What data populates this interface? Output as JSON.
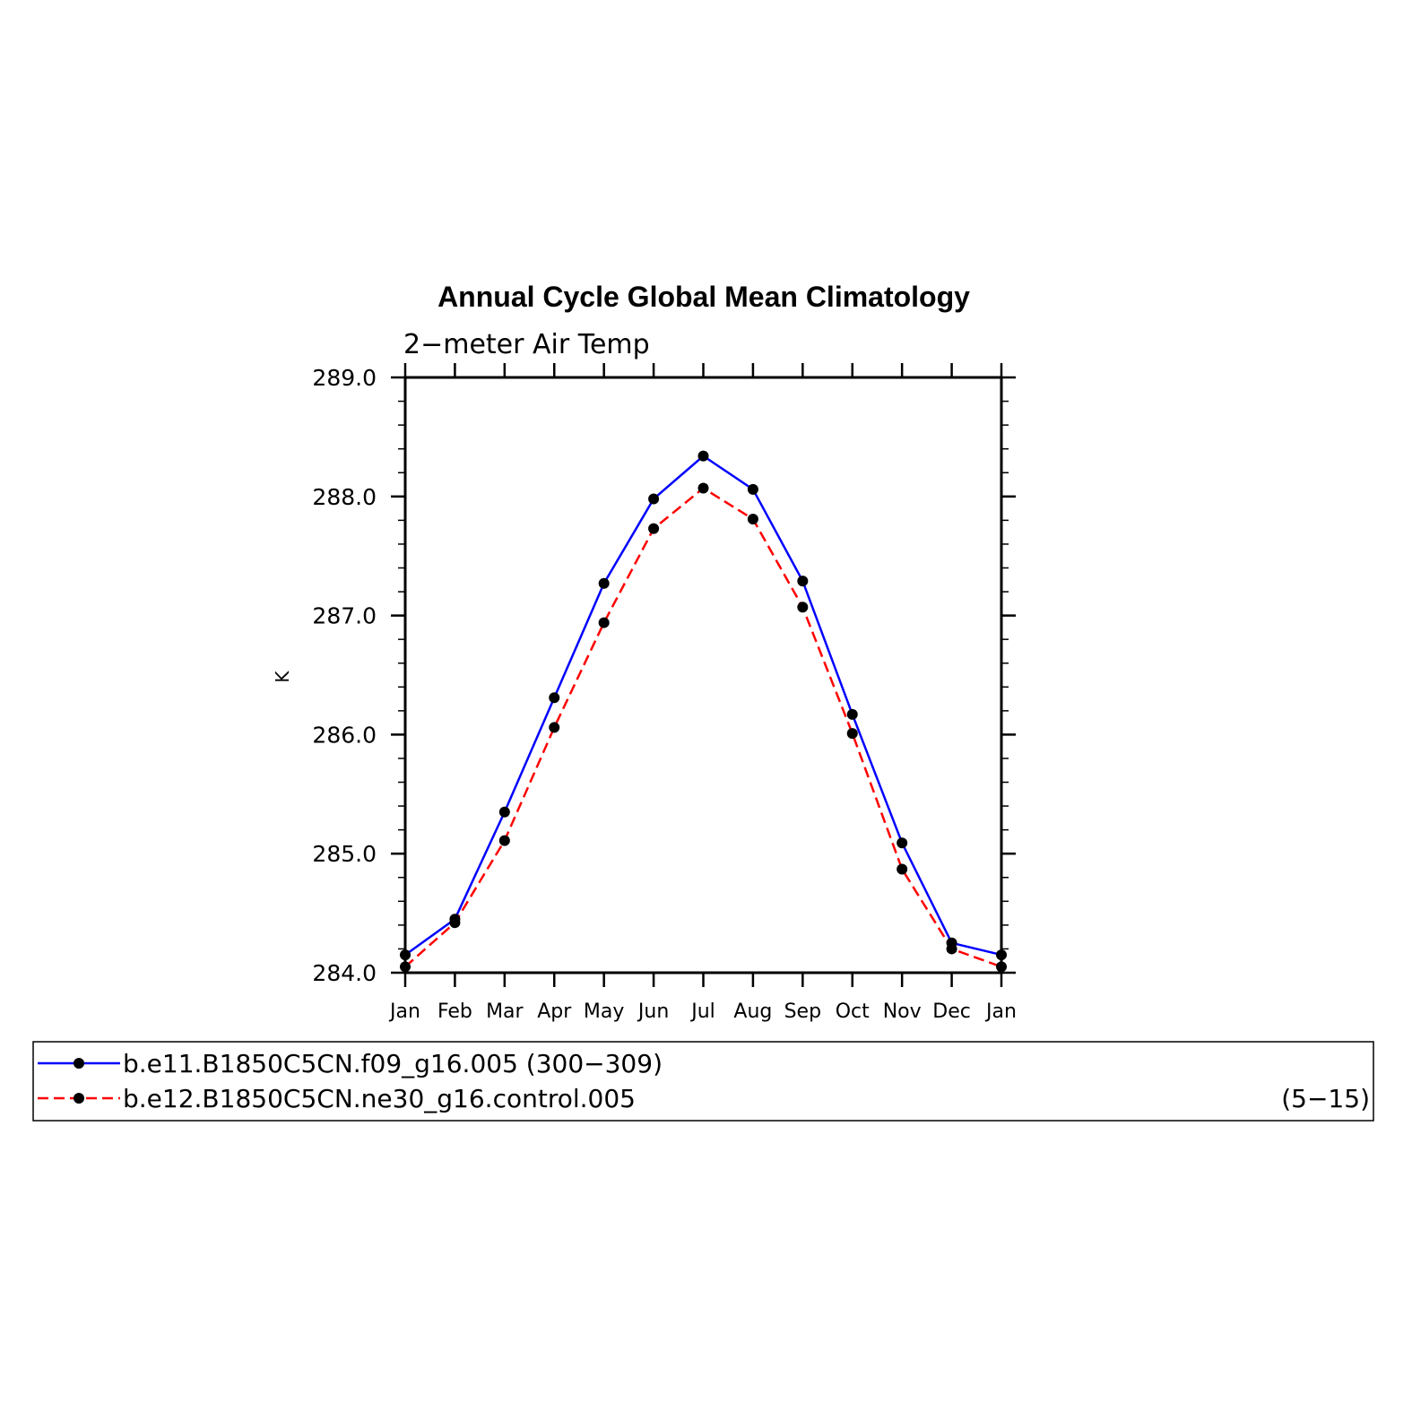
{
  "chart_data": {
    "type": "line",
    "title": "Annual Cycle Global Mean Climatology",
    "subtitle": "2−meter Air Temp",
    "ylabel": "K",
    "xlabel": "",
    "ylim": [
      284.0,
      289.0
    ],
    "yticks": [
      "289.0",
      "288.0",
      "287.0",
      "286.0",
      "285.0",
      "284.0"
    ],
    "categories": [
      "Jan",
      "Feb",
      "Mar",
      "Apr",
      "May",
      "Jun",
      "Jul",
      "Aug",
      "Sep",
      "Oct",
      "Nov",
      "Dec",
      "Jan"
    ],
    "grid": false,
    "legend_position": "bottom",
    "series": [
      {
        "name": "b.e11.B1850C5CN.f09_g16.005 (300−309)",
        "color": "#0000ff",
        "dash": "solid",
        "values": [
          284.15,
          284.45,
          285.35,
          286.31,
          287.27,
          287.98,
          288.34,
          288.06,
          287.29,
          286.17,
          285.09,
          284.25,
          284.15
        ]
      },
      {
        "name": "b.e12.B1850C5CN.ne30_g16.control.005",
        "name_suffix": "(5−15)",
        "color": "#ff0000",
        "dash": "dashed",
        "values": [
          284.05,
          284.42,
          285.11,
          286.06,
          286.94,
          287.73,
          288.07,
          287.81,
          287.07,
          286.01,
          284.87,
          284.2,
          284.05
        ]
      }
    ]
  }
}
